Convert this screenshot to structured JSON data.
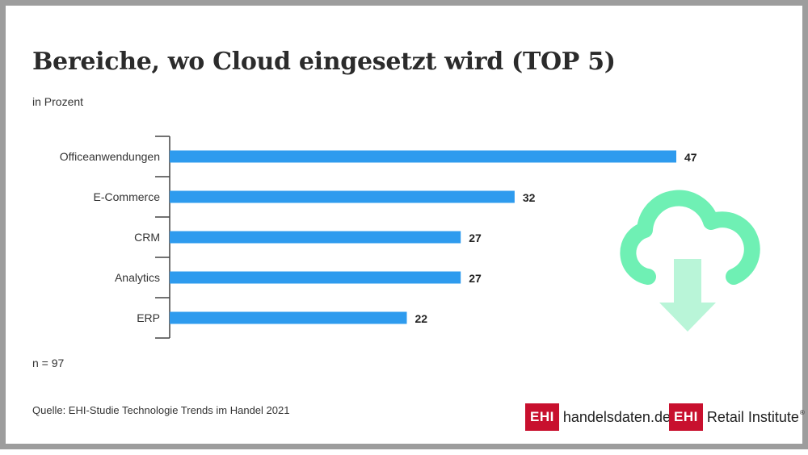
{
  "title": "Bereiche, wo Cloud eingesetzt wird (TOP 5)",
  "subtitle": "in Prozent",
  "note": "n = 97",
  "source": "Quelle: EHI-Studie Technologie Trends im Handel 2021",
  "colors": {
    "bar": "#2e9bee",
    "cloud_outline": "#6ff0b4",
    "cloud_arrow": "#b9f5d8",
    "logo_red": "#c8102e",
    "frame": "#9d9d9d"
  },
  "logos": [
    {
      "box": "EHI",
      "text": "handelsdaten.de"
    },
    {
      "box": "EHI",
      "text": "Retail Institute",
      "mark": "®"
    }
  ],
  "decoration": {
    "icon": "cloud-download-icon"
  },
  "chart_data": {
    "type": "bar",
    "orientation": "horizontal",
    "categories": [
      "Officeanwendungen",
      "E-Commerce",
      "CRM",
      "Analytics",
      "ERP"
    ],
    "values": [
      47,
      32,
      27,
      27,
      22
    ],
    "title": "Bereiche, wo Cloud eingesetzt wird (TOP 5)",
    "unit": "in Prozent",
    "xlim": [
      0,
      47
    ],
    "grid": false,
    "legend": "none",
    "data_labels": true
  }
}
